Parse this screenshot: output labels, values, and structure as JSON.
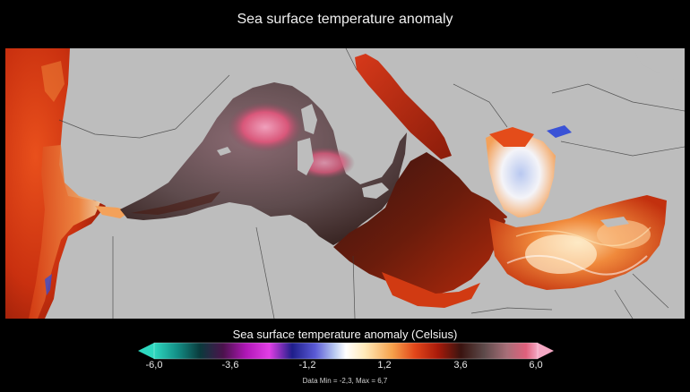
{
  "title": "Sea surface temperature anomaly",
  "legend": {
    "title": "Sea surface temperature anomaly (Celsius)",
    "ticks": [
      "-6,0",
      "-3,6",
      "-1,2",
      "1,2",
      "3,6",
      "6,0"
    ],
    "range": [
      -6.0,
      6.0
    ],
    "colors": [
      "#2ed8c0",
      "#138f86",
      "#0a3a3c",
      "#4b124c",
      "#b017b7",
      "#e23ee6",
      "#1e1e8a",
      "#5a5ad6",
      "#b8c8f0",
      "#ffffff",
      "#ffe9b8",
      "#f6a24c",
      "#e2461a",
      "#a81a0a",
      "#3a1410",
      "#5d4a4a",
      "#a86e78",
      "#e0607c",
      "#f4a8c4"
    ],
    "min_arrow_color": "#2ed8c0",
    "max_arrow_color": "#f4a8c4"
  },
  "footnote": "Data Min = -2,3, Max = 6,7",
  "map": {
    "land_color": "#bdbdbd",
    "border_color": "#3a3a3a"
  }
}
